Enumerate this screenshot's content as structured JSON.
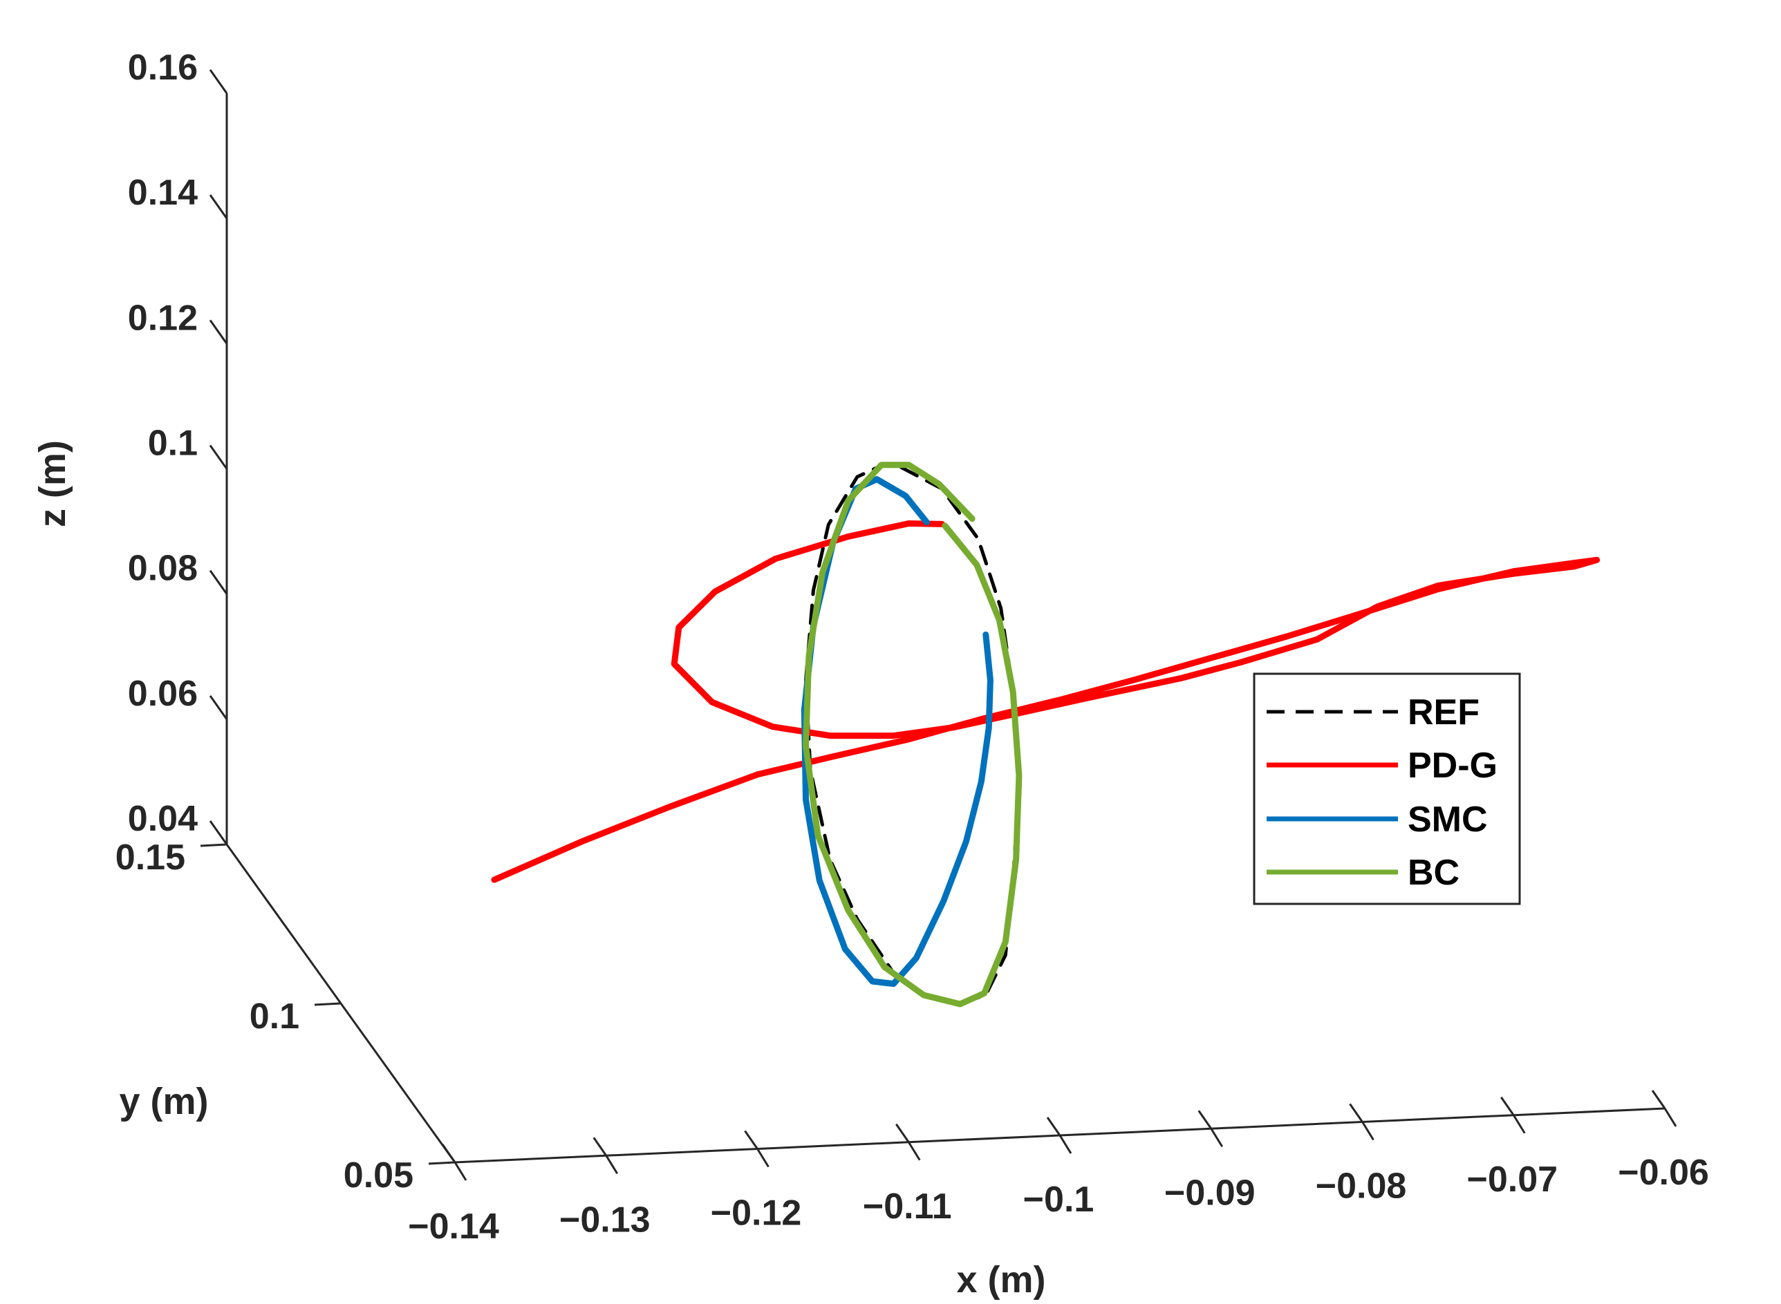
{
  "chart_data": {
    "type": "line",
    "projection": "3d",
    "xlabel": "x (m)",
    "ylabel": "y (m)",
    "zlabel": "z (m)",
    "xlim": [
      -0.14,
      -0.06
    ],
    "ylim": [
      0.05,
      0.15
    ],
    "zlim": [
      0.04,
      0.16
    ],
    "x_ticks": [
      "−0.14",
      "−0.13",
      "−0.12",
      "−0.11",
      "−0.1",
      "−0.09",
      "−0.08",
      "−0.07",
      "−0.06"
    ],
    "y_ticks": [
      "0.05",
      "0.1",
      "0.15"
    ],
    "z_ticks": [
      "0.04",
      "0.06",
      "0.08",
      "0.1",
      "0.12",
      "0.14",
      "0.16"
    ],
    "legend_position": "right",
    "grid": false,
    "series": [
      {
        "name": "REF",
        "color": "#000000",
        "style": "dashed",
        "points": [
          [
            -0.1105,
            0.1276
          ],
          [
            -0.1078,
            0.124
          ],
          [
            -0.1054,
            0.1156
          ],
          [
            -0.1039,
            0.104
          ],
          [
            -0.1031,
            0.09
          ],
          [
            -0.1027,
            0.0745
          ],
          [
            -0.1031,
            0.0585
          ],
          [
            -0.1036,
            0.046
          ],
          [
            -0.1049,
            0.0393
          ],
          [
            -0.1066,
            0.0379
          ],
          [
            -0.1087,
            0.039
          ],
          [
            -0.111,
            0.043
          ],
          [
            -0.1134,
            0.052
          ],
          [
            -0.1152,
            0.062
          ],
          [
            -0.1165,
            0.077
          ],
          [
            -0.1168,
            0.092
          ],
          [
            -0.1163,
            0.107
          ],
          [
            -0.1153,
            0.118
          ],
          [
            -0.1134,
            0.126
          ],
          [
            -0.1117,
            0.128
          ],
          [
            -0.1105,
            0.1276
          ]
        ]
      },
      {
        "name": "PD-G",
        "color": "#ff0000",
        "style": "solid",
        "points": [
          [
            -0.1374,
            0.0586
          ],
          [
            -0.1315,
            0.0651
          ],
          [
            -0.1258,
            0.0708
          ],
          [
            -0.12,
            0.0762
          ],
          [
            -0.1152,
            0.0791
          ],
          [
            -0.11,
            0.0821
          ],
          [
            -0.105,
            0.0856
          ],
          [
            -0.1,
            0.0887
          ],
          [
            -0.095,
            0.0921
          ],
          [
            -0.09,
            0.0957
          ],
          [
            -0.085,
            0.0993
          ],
          [
            -0.08,
            0.1032
          ],
          [
            -0.075,
            0.1072
          ],
          [
            -0.07,
            0.1102
          ],
          [
            -0.066,
            0.1116
          ],
          [
            -0.0645,
            0.1121
          ],
          [
            -0.066,
            0.111
          ],
          [
            -0.07,
            0.1098
          ],
          [
            -0.075,
            0.1078
          ],
          [
            -0.079,
            0.1043
          ],
          [
            -0.083,
            0.0988
          ],
          [
            -0.088,
            0.095
          ],
          [
            -0.092,
            0.0923
          ],
          [
            -0.098,
            0.0891
          ],
          [
            -0.103,
            0.0863
          ],
          [
            -0.107,
            0.0841
          ],
          [
            -0.111,
            0.0827
          ],
          [
            -0.1152,
            0.0827
          ],
          [
            -0.119,
            0.0842
          ],
          [
            -0.123,
            0.0883
          ],
          [
            -0.1255,
            0.0947
          ],
          [
            -0.1252,
            0.1008
          ],
          [
            -0.1228,
            0.1068
          ],
          [
            -0.1188,
            0.1123
          ],
          [
            -0.114,
            0.116
          ],
          [
            -0.11,
            0.1182
          ],
          [
            -0.1078,
            0.1181
          ]
        ]
      },
      {
        "name": "SMC",
        "color": "#0072bd",
        "style": "solid",
        "points": [
          [
            -0.1049,
            0.0996
          ],
          [
            -0.1046,
            0.092
          ],
          [
            -0.1047,
            0.084
          ],
          [
            -0.1052,
            0.075
          ],
          [
            -0.1062,
            0.065
          ],
          [
            -0.1077,
            0.055
          ],
          [
            -0.1095,
            0.0455
          ],
          [
            -0.111,
            0.0412
          ],
          [
            -0.1124,
            0.0416
          ],
          [
            -0.1142,
            0.047
          ],
          [
            -0.1159,
            0.0585
          ],
          [
            -0.1168,
            0.072
          ],
          [
            -0.1169,
            0.087
          ],
          [
            -0.1163,
            0.101
          ],
          [
            -0.115,
            0.115
          ],
          [
            -0.1135,
            0.124
          ],
          [
            -0.1121,
            0.1256
          ],
          [
            -0.1102,
            0.1228
          ],
          [
            -0.1088,
            0.1184
          ]
        ]
      },
      {
        "name": "BC",
        "color": "#77ac30",
        "style": "solid",
        "points": [
          [
            -0.1076,
            0.1178
          ],
          [
            -0.1055,
            0.1113
          ],
          [
            -0.104,
            0.102
          ],
          [
            -0.1031,
            0.09
          ],
          [
            -0.1027,
            0.076
          ],
          [
            -0.1029,
            0.062
          ],
          [
            -0.1036,
            0.0482
          ],
          [
            -0.105,
            0.0396
          ],
          [
            -0.1066,
            0.0378
          ],
          [
            -0.109,
            0.0393
          ],
          [
            -0.1116,
            0.044
          ],
          [
            -0.114,
            0.0535
          ],
          [
            -0.116,
            0.066
          ],
          [
            -0.1168,
            0.081
          ],
          [
            -0.1166,
            0.096
          ],
          [
            -0.1157,
            0.11
          ],
          [
            -0.114,
            0.122
          ],
          [
            -0.1118,
            0.128
          ],
          [
            -0.11,
            0.128
          ],
          [
            -0.108,
            0.1248
          ],
          [
            -0.1058,
            0.119
          ]
        ]
      }
    ]
  }
}
